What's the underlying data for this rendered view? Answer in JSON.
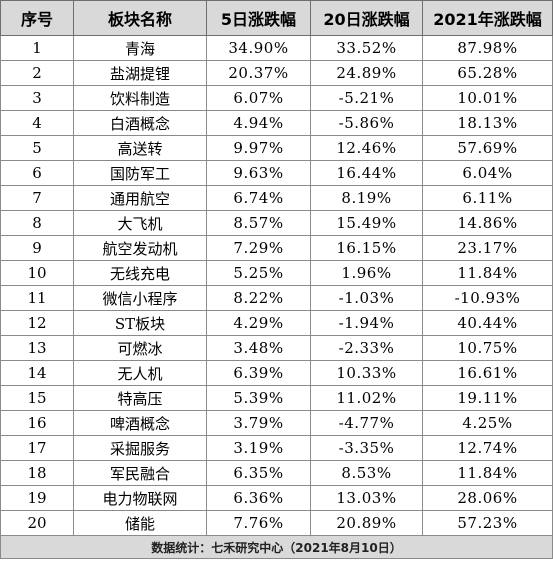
{
  "headers": [
    "序号",
    "板块名称",
    "5日涨跌幅",
    "20日涨跌幅",
    "2021年涨跌幅"
  ],
  "rows": [
    [
      "1",
      "青海",
      "34.90%",
      "33.52%",
      "87.98%"
    ],
    [
      "2",
      "盐湖提锂",
      "20.37%",
      "24.89%",
      "65.28%"
    ],
    [
      "3",
      "饮料制造",
      "6.07%",
      "-5.21%",
      "10.01%"
    ],
    [
      "4",
      "白酒概念",
      "4.94%",
      "-5.86%",
      "18.13%"
    ],
    [
      "5",
      "高送转",
      "9.97%",
      "12.46%",
      "57.69%"
    ],
    [
      "6",
      "国防军工",
      "9.63%",
      "16.44%",
      "6.04%"
    ],
    [
      "7",
      "通用航空",
      "6.74%",
      "8.19%",
      "6.11%"
    ],
    [
      "8",
      "大飞机",
      "8.57%",
      "15.49%",
      "14.86%"
    ],
    [
      "9",
      "航空发动机",
      "7.29%",
      "16.15%",
      "23.17%"
    ],
    [
      "10",
      "无线充电",
      "5.25%",
      "1.96%",
      "11.84%"
    ],
    [
      "11",
      "微信小程序",
      "8.22%",
      "-1.03%",
      "-10.93%"
    ],
    [
      "12",
      "ST板块",
      "4.29%",
      "-1.94%",
      "40.44%"
    ],
    [
      "13",
      "可燃冰",
      "3.48%",
      "-2.33%",
      "10.75%"
    ],
    [
      "14",
      "无人机",
      "6.39%",
      "10.33%",
      "16.61%"
    ],
    [
      "15",
      "特高压",
      "5.39%",
      "11.02%",
      "19.11%"
    ],
    [
      "16",
      "啤酒概念",
      "3.79%",
      "-4.77%",
      "4.25%"
    ],
    [
      "17",
      "采掘服务",
      "3.19%",
      "-3.35%",
      "12.74%"
    ],
    [
      "18",
      "军民融合",
      "6.35%",
      "8.53%",
      "11.84%"
    ],
    [
      "19",
      "电力物联网",
      "6.36%",
      "13.03%",
      "28.06%"
    ],
    [
      "20",
      "储能",
      "7.76%",
      "20.89%",
      "57.23%"
    ]
  ],
  "footer": "数据统计：七禾研究中心（2021年8月10日）"
}
